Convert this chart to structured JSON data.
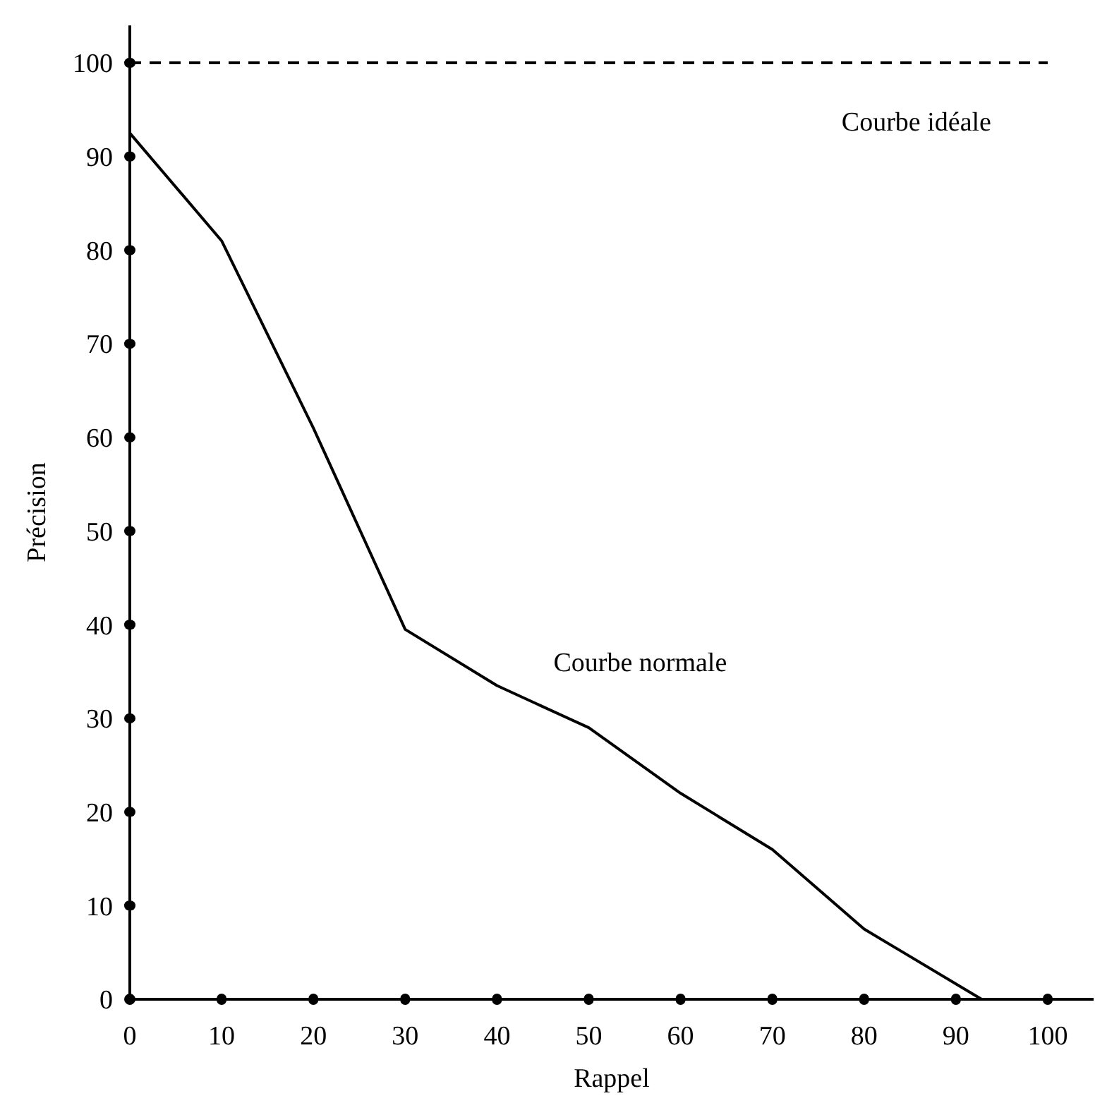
{
  "chart_data": {
    "type": "line",
    "xlabel": "Rappel",
    "ylabel": "Précision",
    "xlim": [
      0,
      105
    ],
    "ylim": [
      0,
      104
    ],
    "xticks": [
      0,
      10,
      20,
      30,
      40,
      50,
      60,
      70,
      80,
      90,
      100
    ],
    "yticks": [
      0,
      10,
      20,
      30,
      40,
      50,
      60,
      70,
      80,
      90,
      100
    ],
    "grid": false,
    "series": [
      {
        "name": "Courbe normale",
        "color": "#000000",
        "line_style": "solid",
        "x": [
          0,
          10,
          20,
          30,
          40,
          50,
          60,
          70,
          80,
          92.8
        ],
        "values": [
          92.5,
          81,
          61,
          39.5,
          33.5,
          29,
          22,
          16,
          7.5,
          0
        ]
      },
      {
        "name": "Courbe idéale",
        "color": "#000000",
        "line_style": "dashed",
        "x": [
          0,
          100
        ],
        "values": [
          100,
          100
        ]
      }
    ]
  }
}
